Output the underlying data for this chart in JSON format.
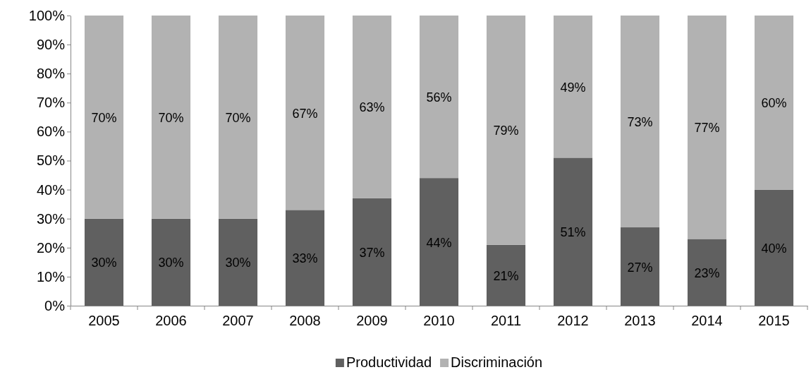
{
  "chart_data": {
    "type": "bar",
    "stacked": true,
    "categories": [
      "2005",
      "2006",
      "2007",
      "2008",
      "2009",
      "2010",
      "2011",
      "2012",
      "2013",
      "2014",
      "2015"
    ],
    "series": [
      {
        "name": "Productividad",
        "color": "#606060",
        "values": [
          30,
          30,
          30,
          33,
          37,
          44,
          21,
          51,
          27,
          23,
          40
        ],
        "value_labels": [
          "30%",
          "30%",
          "30%",
          "33%",
          "37%",
          "44%",
          "21%",
          "51%",
          "27%",
          "23%",
          "40%"
        ]
      },
      {
        "name": "Discriminación",
        "color": "#b2b2b2",
        "values": [
          70,
          70,
          70,
          67,
          63,
          56,
          79,
          49,
          73,
          77,
          60
        ],
        "value_labels": [
          "70%",
          "70%",
          "70%",
          "67%",
          "63%",
          "56%",
          "79%",
          "49%",
          "73%",
          "77%",
          "60%"
        ]
      }
    ],
    "ylim": [
      0,
      100
    ],
    "yticks": [
      {
        "value": 0,
        "label": "0%"
      },
      {
        "value": 10,
        "label": "10%"
      },
      {
        "value": 20,
        "label": "20%"
      },
      {
        "value": 30,
        "label": "30%"
      },
      {
        "value": 40,
        "label": "40%"
      },
      {
        "value": 50,
        "label": "50%"
      },
      {
        "value": 60,
        "label": "60%"
      },
      {
        "value": 70,
        "label": "70%"
      },
      {
        "value": 80,
        "label": "80%"
      },
      {
        "value": 90,
        "label": "90%"
      },
      {
        "value": 100,
        "label": "100%"
      }
    ],
    "legend": "bottom"
  }
}
